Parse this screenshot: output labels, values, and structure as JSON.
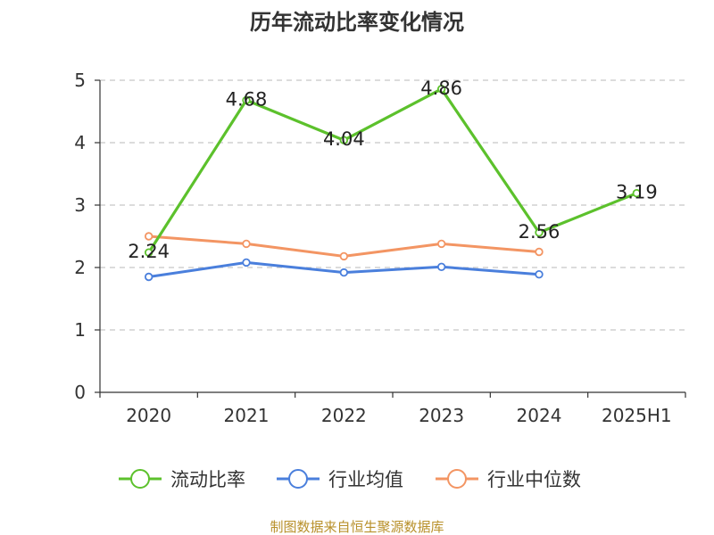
{
  "chart_data": {
    "type": "line",
    "title": "历年流动比率变化情况",
    "categories": [
      "2020",
      "2021",
      "2022",
      "2023",
      "2024",
      "2025H1"
    ],
    "ylim": [
      0,
      5
    ],
    "yticks": [
      "0",
      "1",
      "2",
      "3",
      "4",
      "5"
    ],
    "grid": "horizontal dashed",
    "legend_position": "bottom",
    "series": [
      {
        "name": "流动比率",
        "color": "#5cc12c",
        "values": [
          2.24,
          4.68,
          4.04,
          4.86,
          2.56,
          3.19
        ],
        "labels": [
          "2.24",
          "4.68",
          "4.04",
          "4.86",
          "2.56",
          "3.19"
        ]
      },
      {
        "name": "行业均值",
        "color": "#4a7fdc",
        "values": [
          1.85,
          2.08,
          1.92,
          2.01,
          1.89,
          null
        ]
      },
      {
        "name": "行业中位数",
        "color": "#f39563",
        "values": [
          2.5,
          2.38,
          2.18,
          2.38,
          2.25,
          null
        ]
      }
    ],
    "source": "制图数据来自恒生聚源数据库"
  }
}
